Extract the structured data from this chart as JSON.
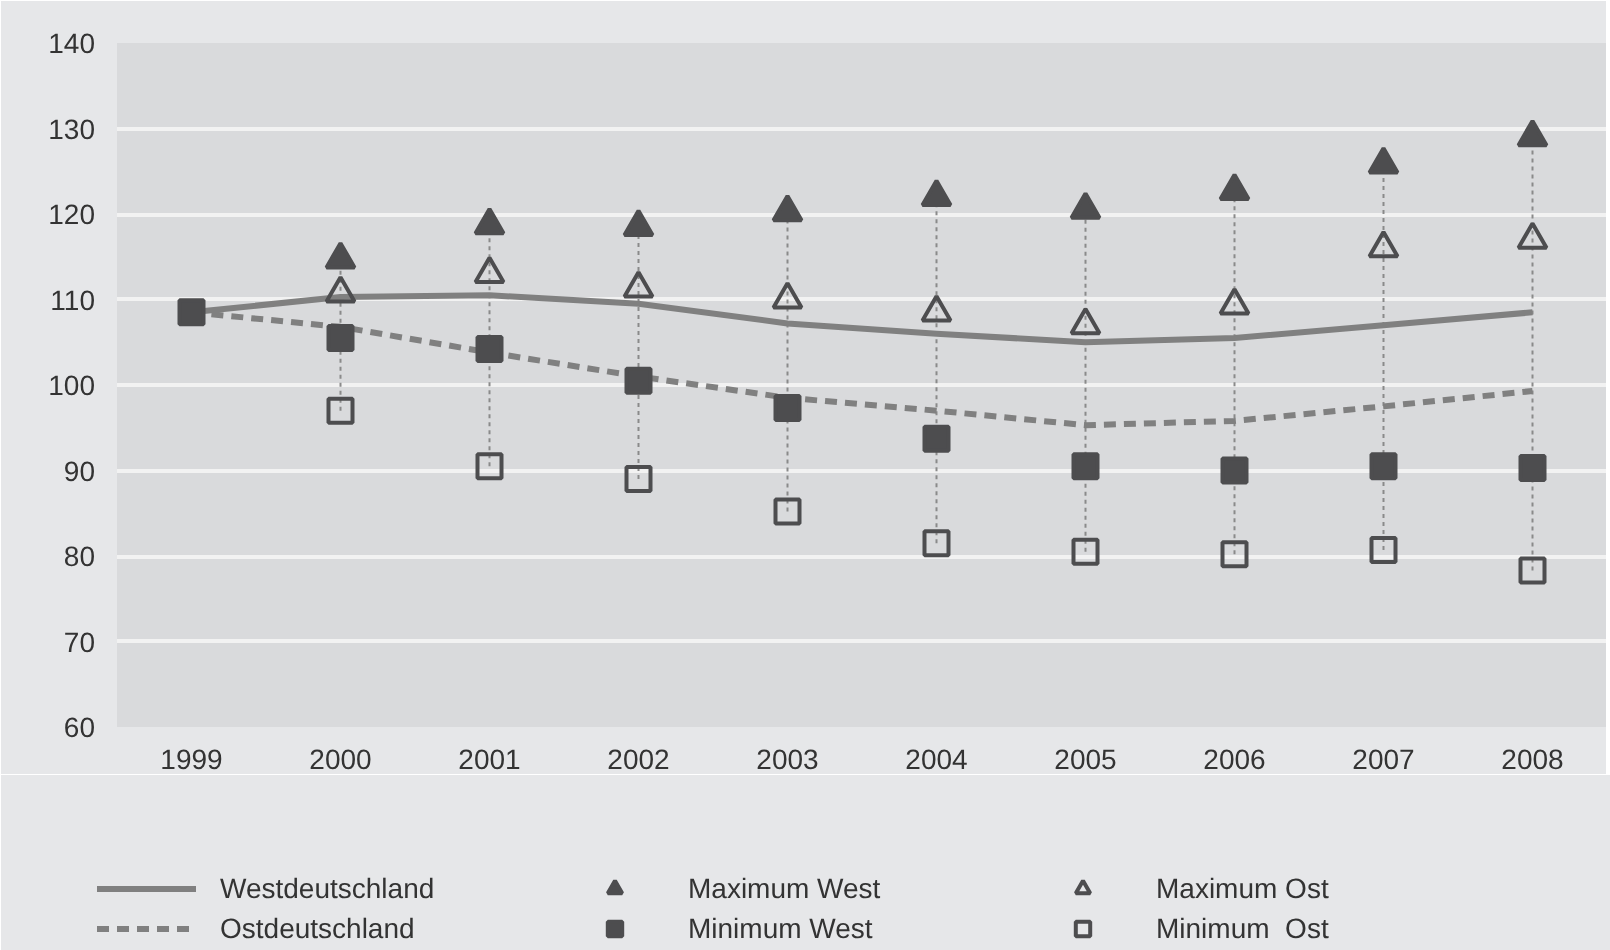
{
  "chart_data": {
    "type": "line",
    "categories": [
      "1999",
      "2000",
      "2001",
      "2002",
      "2003",
      "2004",
      "2005",
      "2006",
      "2007",
      "2008"
    ],
    "ylim": [
      60,
      140
    ],
    "yticks": [
      60,
      70,
      80,
      90,
      100,
      110,
      120,
      130,
      140
    ],
    "grid": "y",
    "legend": "bottom",
    "series": [
      {
        "name": "Westdeutschland",
        "line_style": "solid",
        "marker": "none",
        "color": "#808080",
        "values": [
          108.5,
          110.3,
          110.5,
          109.5,
          107.2,
          106,
          105,
          105.5,
          107,
          108.5
        ]
      },
      {
        "name": "Ostdeutschland",
        "line_style": "dashed",
        "marker": "none",
        "color": "#808080",
        "values": [
          108.5,
          106.8,
          103.8,
          101,
          98.5,
          97,
          95.3,
          95.8,
          97.5,
          99.3
        ]
      },
      {
        "name": "Maximum West",
        "type": "scatter",
        "marker": "triangle",
        "color": "#4d4d4f",
        "values": [
          null,
          114.7,
          118.7,
          118.5,
          120.2,
          122,
          120.5,
          122.7,
          125.8,
          129
        ]
      },
      {
        "name": "Minimum West",
        "type": "scatter",
        "marker": "square",
        "color": "#4d4d4f",
        "values": [
          108.5,
          105.5,
          104.2,
          100.5,
          97.3,
          93.7,
          90.5,
          90,
          90.5,
          90.3
        ]
      },
      {
        "name": "Maximum Ost",
        "type": "scatter",
        "marker": "triangle",
        "color": "#4d4d4f",
        "values": [
          null,
          110.7,
          113,
          111.3,
          110,
          108.5,
          107,
          109.3,
          116,
          117
        ]
      },
      {
        "name": "Minimum  Ost",
        "type": "scatter",
        "marker": "square",
        "color": "#4d4d4f",
        "values": [
          null,
          97,
          90.5,
          89,
          85.2,
          81.5,
          80.5,
          80.2,
          80.7,
          78.3
        ]
      }
    ]
  }
}
